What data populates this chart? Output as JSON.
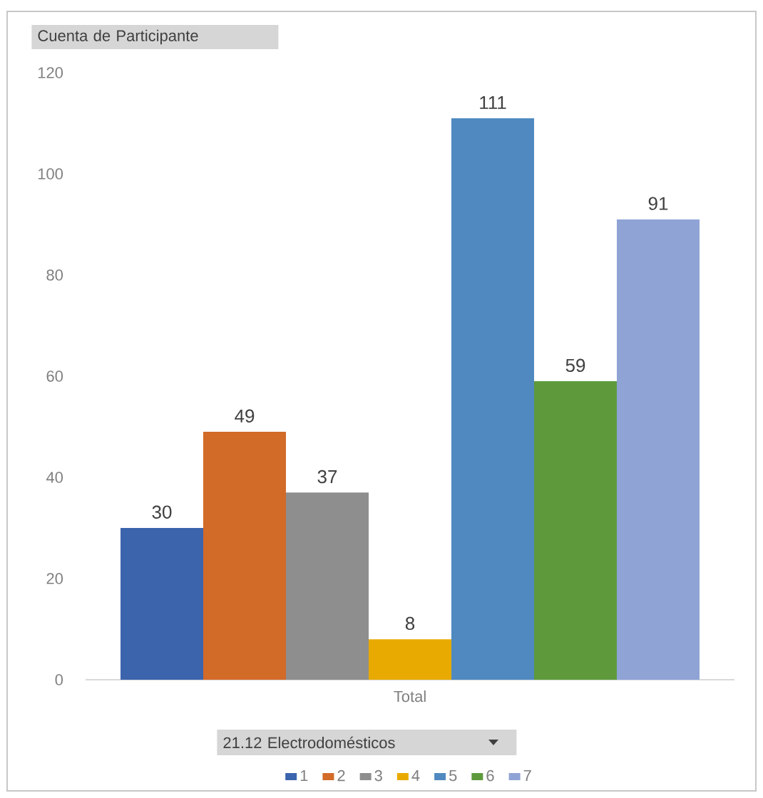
{
  "chart_data": {
    "type": "bar",
    "ylabel": "Cuenta de Participante",
    "legend_title": "21.12 Electrodomésticos",
    "categories": [
      "Total"
    ],
    "series": [
      {
        "name": "1",
        "color": "#3c64ad",
        "values": [
          30
        ]
      },
      {
        "name": "2",
        "color": "#d26a28",
        "values": [
          49
        ]
      },
      {
        "name": "3",
        "color": "#8e8e8e",
        "values": [
          37
        ]
      },
      {
        "name": "4",
        "color": "#e8aa00",
        "values": [
          8
        ]
      },
      {
        "name": "5",
        "color": "#4f89c0",
        "values": [
          111
        ]
      },
      {
        "name": "6",
        "color": "#5e9a3c",
        "values": [
          59
        ]
      },
      {
        "name": "7",
        "color": "#8fa3d5",
        "values": [
          91
        ]
      }
    ],
    "ylim": [
      0,
      120
    ],
    "yticks": [
      0,
      20,
      40,
      60,
      80,
      100,
      120
    ],
    "data_labels": true,
    "legend": "bottom"
  }
}
